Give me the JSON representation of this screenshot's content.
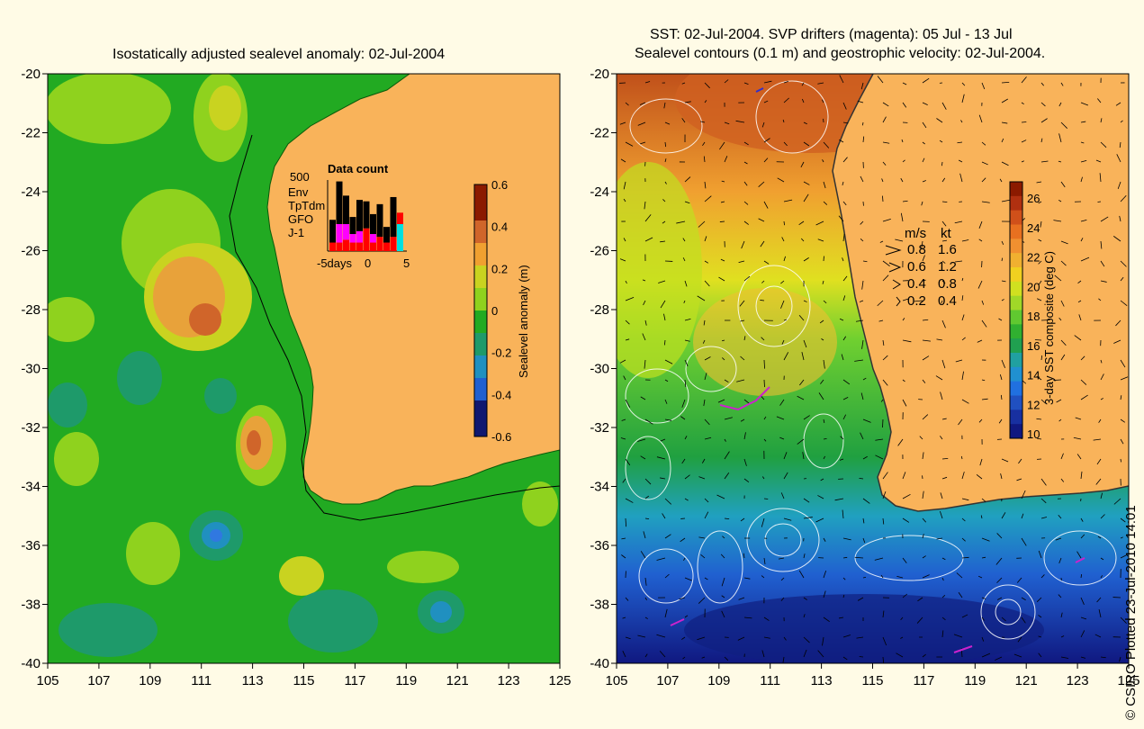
{
  "left_panel": {
    "title": "Isostatically adjusted sealevel anomaly: 02-Jul-2004",
    "y_ticks": [
      "-20",
      "-22",
      "-24",
      "-26",
      "-28",
      "-30",
      "-32",
      "-34",
      "-36",
      "-38",
      "-40"
    ],
    "x_ticks": [
      "105",
      "107",
      "109",
      "111",
      "113",
      "115",
      "117",
      "119",
      "121",
      "123",
      "125"
    ],
    "colorbar": {
      "label": "Sealevel anomaly (m)",
      "ticks": [
        "0.6",
        "0.4",
        "0.2",
        "0",
        "-0.2",
        "-0.4",
        "-0.6"
      ]
    },
    "data_count": {
      "title": "Data count",
      "max_label": "500",
      "legend": [
        {
          "label": "Env",
          "color": "#000000"
        },
        {
          "label": "TpTdm",
          "color": "#ff00ff"
        },
        {
          "label": "GFO",
          "color": "#ff0000"
        },
        {
          "label": "J-1",
          "color": "#00e0e0"
        }
      ],
      "x_ticks": [
        "-5days",
        "0",
        "5"
      ],
      "bars": [
        {
          "env": 160,
          "tptdm": 0,
          "gfo": 60,
          "j1": 0
        },
        {
          "env": 300,
          "tptdm": 130,
          "gfo": 60,
          "j1": 0
        },
        {
          "env": 200,
          "tptdm": 110,
          "gfo": 80,
          "j1": 0
        },
        {
          "env": 120,
          "tptdm": 60,
          "gfo": 60,
          "j1": 0
        },
        {
          "env": 220,
          "tptdm": 80,
          "gfo": 60,
          "j1": 0
        },
        {
          "env": 190,
          "tptdm": 0,
          "gfo": 160,
          "j1": 0
        },
        {
          "env": 140,
          "tptdm": 60,
          "gfo": 60,
          "j1": 0
        },
        {
          "env": 230,
          "tptdm": 0,
          "gfo": 100,
          "j1": 0
        },
        {
          "env": 110,
          "tptdm": 0,
          "gfo": 60,
          "j1": 0
        },
        {
          "env": 280,
          "tptdm": 0,
          "gfo": 100,
          "j1": 0
        },
        {
          "env": 0,
          "tptdm": 0,
          "gfo": 80,
          "j1": 190
        }
      ]
    }
  },
  "right_panel": {
    "title_line1": "SST: 02-Jul-2004. SVP drifters (magenta): 05 Jul - 13 Jul",
    "title_line2": "Sealevel contours (0.1 m) and geostrophic velocity: 02-Jul-2004.",
    "y_ticks": [
      "-20",
      "-22",
      "-24",
      "-26",
      "-28",
      "-30",
      "-32",
      "-34",
      "-36",
      "-38",
      "-40"
    ],
    "x_ticks": [
      "105",
      "107",
      "109",
      "111",
      "113",
      "115",
      "117",
      "119",
      "121",
      "123",
      "125"
    ],
    "colorbar": {
      "label": "3-day SST composite (deg C)",
      "ticks": [
        "26",
        "24",
        "22",
        "20",
        "18",
        "16",
        "14",
        "12",
        "10"
      ]
    },
    "velocity_key": {
      "header_ms": "m/s",
      "header_kt": "kt",
      "rows": [
        {
          "ms": "0.8",
          "kt": "1.6"
        },
        {
          "ms": "0.6",
          "kt": "1.2"
        },
        {
          "ms": "0.4",
          "kt": "0.8"
        },
        {
          "ms": "0.2",
          "kt": "0.4"
        }
      ]
    }
  },
  "credit": "© CSIRO Plotted 23-Jul-2010 14:01",
  "colors": {
    "land": "#f9b35a",
    "background": "#fffbe6"
  }
}
